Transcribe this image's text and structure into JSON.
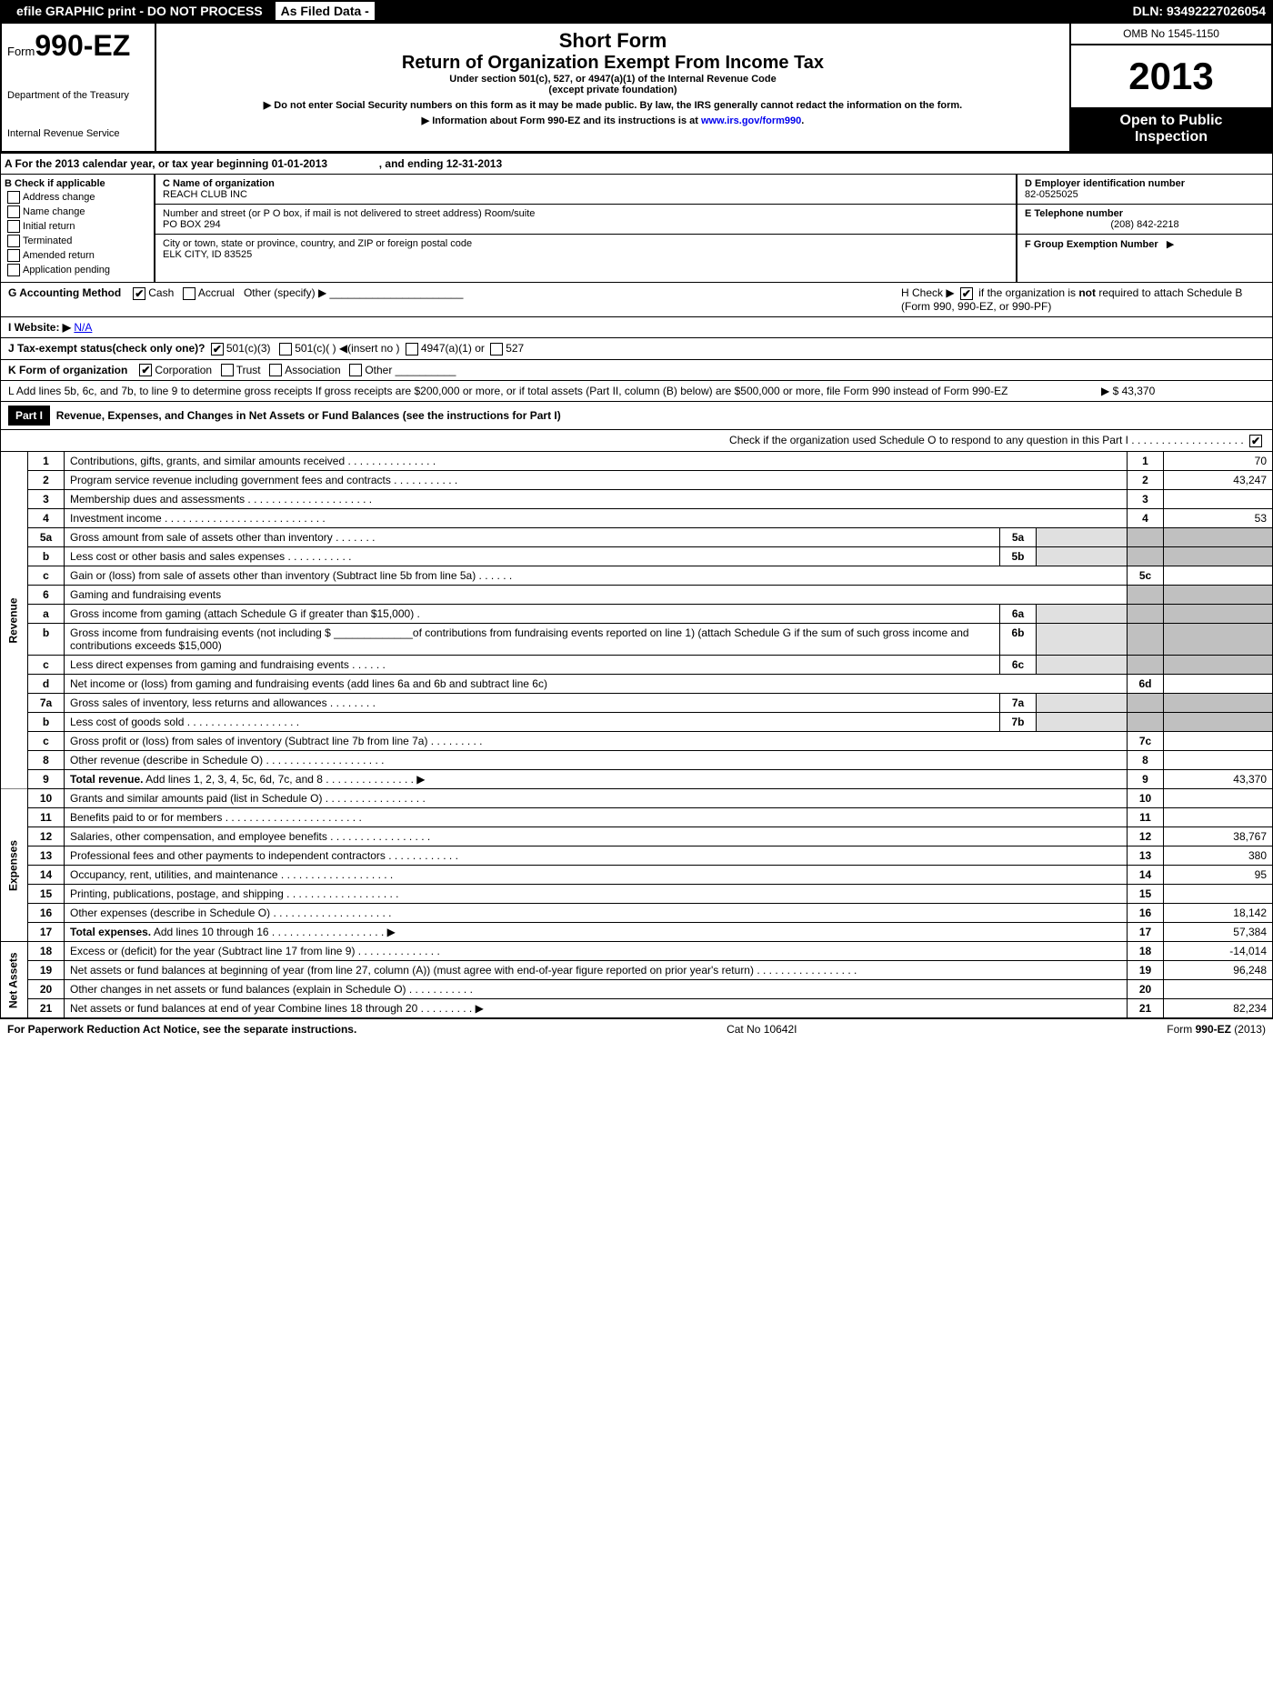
{
  "topbar": {
    "efile": "efile GRAPHIC print - DO NOT PROCESS",
    "asfiled": "As Filed Data -",
    "dln": "DLN: 93492227026054"
  },
  "header": {
    "form_prefix": "Form",
    "form_number": "990-EZ",
    "dept1": "Department of the Treasury",
    "dept2": "Internal Revenue Service",
    "title1": "Short Form",
    "title2": "Return of Organization Exempt From Income Tax",
    "subtitle1": "Under section 501(c), 527, or 4947(a)(1) of the Internal Revenue Code",
    "subtitle2": "(except private foundation)",
    "note1": "▶ Do not enter Social Security numbers on this form as it may be made public. By law, the IRS generally cannot redact the information on the form.",
    "note2_prefix": "▶ Information about Form 990-EZ and its instructions is at ",
    "note2_link": "www.irs.gov/form990",
    "omb": "OMB No 1545-1150",
    "year": "2013",
    "open1": "Open to Public",
    "open2": "Inspection"
  },
  "section_a": {
    "text1": "A  For the 2013 calendar year, or tax year beginning 01-01-2013",
    "text2": ", and ending 12-31-2013"
  },
  "section_b": {
    "header": "B  Check if applicable",
    "items": [
      "Address change",
      "Name change",
      "Initial return",
      "Terminated",
      "Amended return",
      "Application pending"
    ]
  },
  "section_c": {
    "name_label": "C Name of organization",
    "name": "REACH CLUB INC",
    "street_label": "Number and street (or P  O  box, if mail is not delivered to street address) Room/suite",
    "street": "PO BOX 294",
    "city_label": "City or town, state or province, country, and ZIP or foreign postal code",
    "city": "ELK CITY, ID  83525"
  },
  "section_d": {
    "ein_label": "D Employer identification number",
    "ein": "82-0525025",
    "phone_label": "E Telephone number",
    "phone": "(208) 842-2218",
    "group_label": "F Group Exemption Number",
    "group_arrow": "▶"
  },
  "line_g": {
    "text": "G Accounting Method",
    "cash": "Cash",
    "accrual": "Accrual",
    "other": "Other (specify) ▶"
  },
  "line_h": {
    "text1": "H  Check ▶",
    "text2": "if the organization is ",
    "text3": "not",
    "text4": " required to attach Schedule B (Form 990, 990-EZ, or 990-PF)"
  },
  "line_i": {
    "label": "I Website: ▶",
    "value": "N/A"
  },
  "line_j": {
    "text": "J Tax-exempt status(check only one)?",
    "opt1": "501(c)(3)",
    "opt2": "501(c)(  ) ◀(insert no )",
    "opt3": "4947(a)(1) or",
    "opt4": "527"
  },
  "line_k": {
    "text": "K Form of organization",
    "opts": [
      "Corporation",
      "Trust",
      "Association",
      "Other"
    ]
  },
  "line_l": {
    "text": "L Add lines 5b, 6c, and 7b, to line 9 to determine gross receipts  If gross receipts are $200,000 or more, or if total assets (Part II, column (B) below) are $500,000 or more, file Form 990 instead of Form 990-EZ",
    "amount": "▶ $ 43,370"
  },
  "part1": {
    "header": "Part I",
    "title": "Revenue, Expenses, and Changes in Net Assets or Fund Balances (see the instructions for Part I)",
    "check_note": "Check if the organization used Schedule O to respond to any question in this Part I  .  .  .  .  .  .  .  .  .  .  .  .  .  .  .  .  .  .  ."
  },
  "side_labels": {
    "revenue": "Revenue",
    "expenses": "Expenses",
    "netassets": "Net Assets"
  },
  "rows": [
    {
      "n": "1",
      "desc": "Contributions, gifts, grants, and similar amounts received   .   .   .   .   .   .   .   .   .   .   .   .   .   .   .",
      "mn": "1",
      "mv": "70"
    },
    {
      "n": "2",
      "desc": "Program service revenue including government fees and contracts   .   .   .   .   .   .   .   .   .   .   .",
      "mn": "2",
      "mv": "43,247"
    },
    {
      "n": "3",
      "desc": "Membership dues and assessments    .   .   .   .   .   .   .   .   .   .   .   .   .   .   .   .   .   .   .   .   .",
      "mn": "3",
      "mv": ""
    },
    {
      "n": "4",
      "desc": "Investment income   .   .   .   .   .   .   .   .   .   .   .   .   .   .   .   .   .   .   .   .   .   .   .   .   .   .   .",
      "mn": "4",
      "mv": "53"
    },
    {
      "n": "5a",
      "desc": "Gross amount from sale of assets other than inventory    .   .   .   .   .   .   .",
      "sn": "5a",
      "sv": ""
    },
    {
      "n": "b",
      "desc": "Less  cost or other basis and sales expenses    .   .   .   .   .   .   .   .   .   .   .",
      "sn": "5b",
      "sv": ""
    },
    {
      "n": "c",
      "desc": "Gain or (loss) from sale of assets other than inventory (Subtract line 5b from line 5a)   .   .   .   .   .   .",
      "mn": "5c",
      "mv": ""
    },
    {
      "n": "6",
      "desc": "Gaming and fundraising events"
    },
    {
      "n": "a",
      "desc": "Gross income from gaming (attach Schedule G if greater than $15,000)   .",
      "sn": "6a",
      "sv": ""
    },
    {
      "n": "b",
      "desc": "Gross income from fundraising events (not including $ _____________of contributions from fundraising events reported on line 1) (attach Schedule G if the sum of such gross income and contributions exceeds $15,000)",
      "sn": "6b",
      "sv": ""
    },
    {
      "n": "c",
      "desc": "Less  direct expenses from gaming and fundraising events   .   .   .   .   .   .",
      "sn": "6c",
      "sv": ""
    },
    {
      "n": "d",
      "desc": "Net income or (loss) from gaming and fundraising events (add lines 6a and 6b and subtract line 6c)",
      "mn": "6d",
      "mv": ""
    },
    {
      "n": "7a",
      "desc": "Gross sales of inventory, less returns and allowances   .   .   .   .   .   .   .   .",
      "sn": "7a",
      "sv": ""
    },
    {
      "n": "b",
      "desc": "Less  cost of goods sold   .   .   .   .   .   .   .   .   .   .   .   .   .   .   .   .   .   .   .",
      "sn": "7b",
      "sv": ""
    },
    {
      "n": "c",
      "desc": "Gross profit or (loss) from sales of inventory (Subtract line 7b from line 7a)   .   .   .   .   .   .   .   .   .",
      "mn": "7c",
      "mv": ""
    },
    {
      "n": "8",
      "desc": "Other revenue (describe in Schedule O)   .   .   .   .   .   .   .   .   .   .   .   .   .   .   .   .   .   .   .   .",
      "mn": "8",
      "mv": ""
    },
    {
      "n": "9",
      "desc": "<b>Total revenue.</b> Add lines 1, 2, 3, 4, 5c, 6d, 7c, and 8   .   .   .   .   .   .   .   .   .   .   .   .   .   .   .    ▶",
      "mn": "9",
      "mv": "43,370"
    },
    {
      "n": "10",
      "desc": "Grants and similar amounts paid (list in Schedule O)   .   .   .   .   .   .   .   .   .   .   .   .   .   .   .   .   .",
      "mn": "10",
      "mv": ""
    },
    {
      "n": "11",
      "desc": "Benefits paid to or for members   .   .   .   .   .   .   .   .   .   .   .   .   .   .   .   .   .   .   .   .   .   .   .",
      "mn": "11",
      "mv": ""
    },
    {
      "n": "12",
      "desc": "Salaries, other compensation, and employee benefits   .   .   .   .   .   .   .   .   .   .   .   .   .   .   .   .   .",
      "mn": "12",
      "mv": "38,767"
    },
    {
      "n": "13",
      "desc": "Professional fees and other payments to independent contractors   .   .   .   .   .   .   .   .   .   .   .   .",
      "mn": "13",
      "mv": "380"
    },
    {
      "n": "14",
      "desc": "Occupancy, rent, utilities, and maintenance   .   .   .   .   .   .   .   .   .   .   .   .   .   .   .   .   .   .   .",
      "mn": "14",
      "mv": "95"
    },
    {
      "n": "15",
      "desc": "Printing, publications, postage, and shipping   .   .   .   .   .   .   .   .   .   .   .   .   .   .   .   .   .   .   .",
      "mn": "15",
      "mv": ""
    },
    {
      "n": "16",
      "desc": "Other expenses (describe in Schedule O)   .   .   .   .   .   .   .   .   .   .   .   .   .   .   .   .   .   .   .   .",
      "mn": "16",
      "mv": "18,142"
    },
    {
      "n": "17",
      "desc": "<b>Total expenses.</b> Add lines 10 through 16   .   .   .   .   .   .   .   .   .   .   .   .   .   .   .   .   .   .   .    ▶",
      "mn": "17",
      "mv": "57,384"
    },
    {
      "n": "18",
      "desc": "Excess or (deficit) for the year (Subtract line 17 from line 9)    .   .   .   .   .   .   .   .   .   .   .   .   .   .",
      "mn": "18",
      "mv": "-14,014"
    },
    {
      "n": "19",
      "desc": "Net assets or fund balances at beginning of year (from line 27, column (A)) (must agree with end-of-year figure reported on prior year's return)   .   .   .   .   .   .   .   .   .   .   .   .   .   .   .   .   .",
      "mn": "19",
      "mv": "96,248"
    },
    {
      "n": "20",
      "desc": "Other changes in net assets or fund balances (explain in Schedule O)   .   .   .   .   .   .   .   .   .   .   .",
      "mn": "20",
      "mv": ""
    },
    {
      "n": "21",
      "desc": "Net assets or fund balances at end of year  Combine lines 18 through 20   .   .   .   .   .   .   .   .   .  ▶",
      "mn": "21",
      "mv": "82,234"
    }
  ],
  "footer": {
    "left": "For Paperwork Reduction Act Notice, see the separate instructions.",
    "center": "Cat  No  10642I",
    "right": "Form 990-EZ (2013)"
  }
}
